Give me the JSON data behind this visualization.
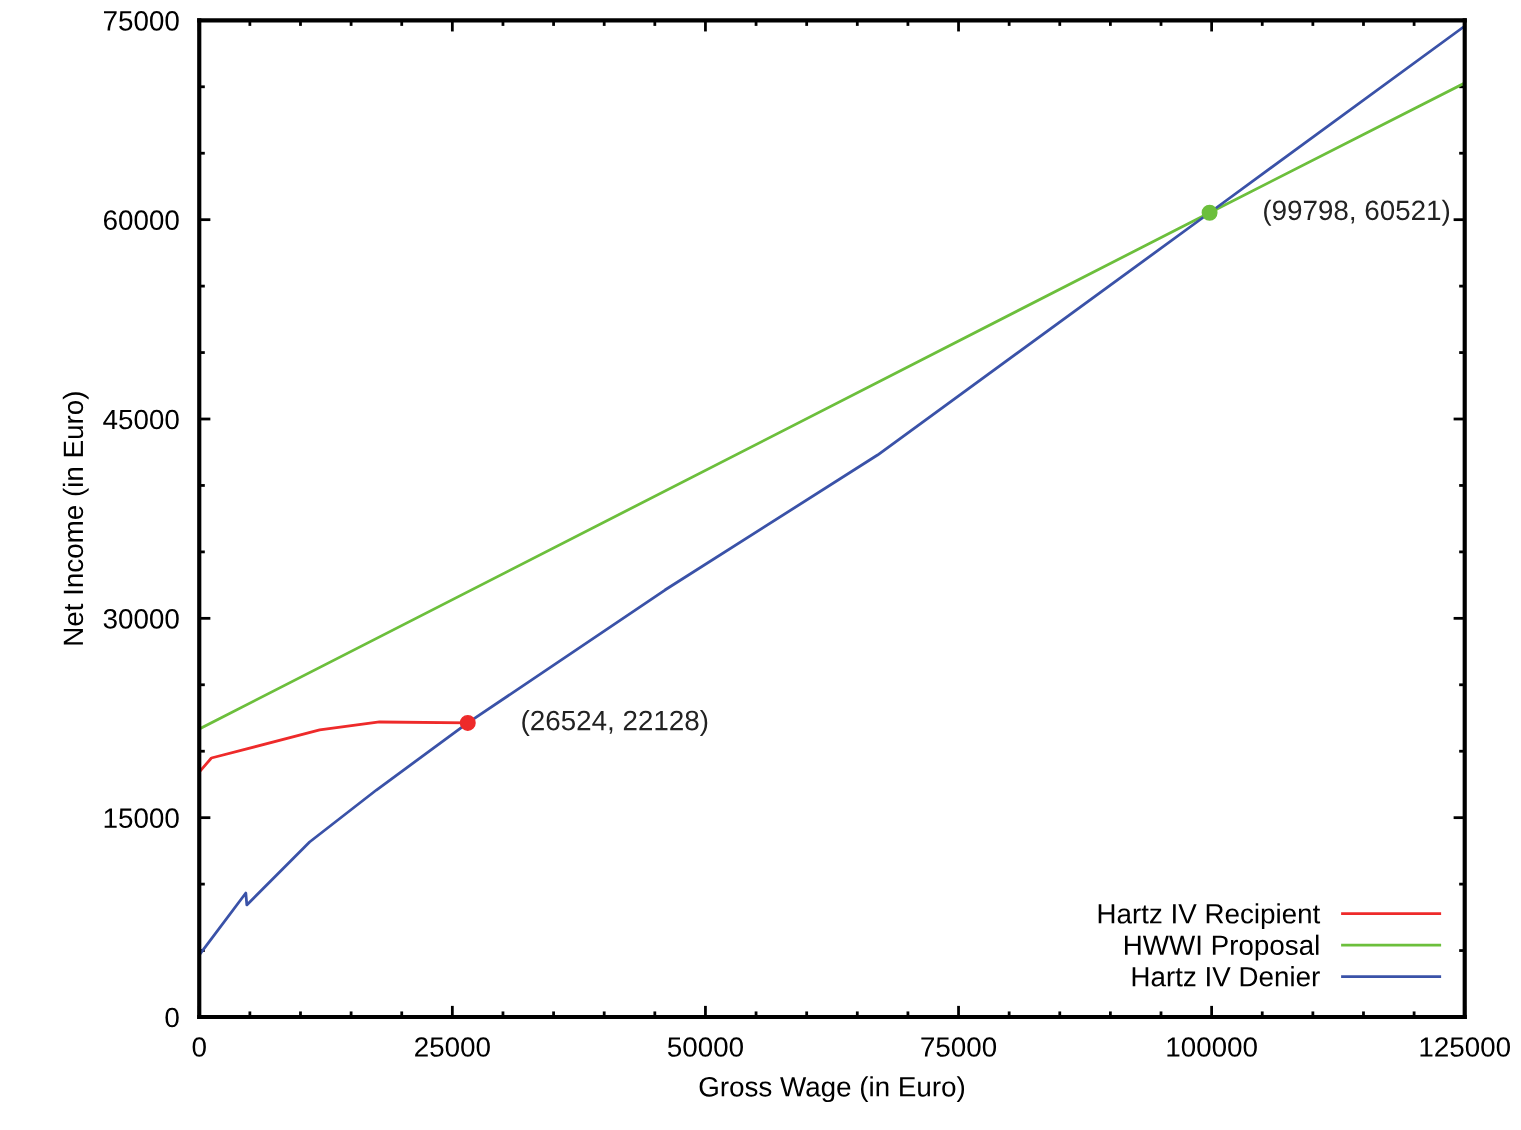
{
  "chart_data": {
    "type": "line",
    "xlabel": "Gross Wage (in Euro)",
    "ylabel": "Net Income (in Euro)",
    "xlim": [
      0,
      125000
    ],
    "ylim": [
      0,
      75000
    ],
    "xticks": [
      0,
      25000,
      50000,
      75000,
      100000,
      125000
    ],
    "yticks": [
      0,
      15000,
      30000,
      45000,
      60000,
      75000
    ],
    "grid": false,
    "legend": "bottom right",
    "marker": "none",
    "line_style": "solid",
    "series": [
      {
        "name": "Hartz IV Recipient",
        "color": "#ee2a2a",
        "x": [
          0,
          1200,
          11900,
          17800,
          26524
        ],
        "values": [
          18430,
          19490,
          21600,
          22200,
          22128
        ]
      },
      {
        "name": "HWWI Proposal",
        "color": "#6cbf3c",
        "x": [
          0,
          99798,
          125000
        ],
        "values": [
          21670,
          60521,
          70280
        ]
      },
      {
        "name": "Hartz IV Denier",
        "color": "#3a52a8",
        "x": [
          0,
          4600,
          4700,
          10900,
          17500,
          26524,
          46000,
          67000,
          99798,
          125000
        ],
        "values": [
          4660,
          9330,
          8430,
          13170,
          17080,
          22128,
          32130,
          42290,
          60521,
          74570
        ]
      },
      {
        "type": "scatter",
        "color": "#ee2a2a",
        "marker": "circle",
        "x": [
          26524
        ],
        "values": [
          22128
        ],
        "value_labels": [
          "(26524, 22128)"
        ]
      },
      {
        "type": "scatter",
        "color": "#6cbf3c",
        "marker": "circle",
        "x": [
          99798
        ],
        "values": [
          60521
        ],
        "value_labels": [
          "(99798, 60521)"
        ]
      }
    ]
  }
}
